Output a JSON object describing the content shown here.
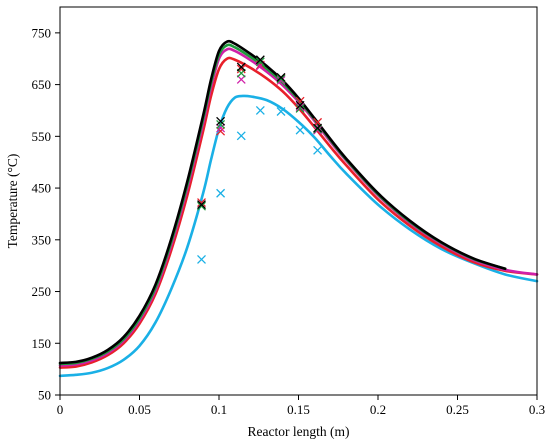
{
  "chart_data": {
    "type": "line",
    "title": "",
    "xlabel": "Reactor length (m)",
    "ylabel": "Temperature (°C)",
    "xlim": [
      0,
      0.3
    ],
    "ylim": [
      50,
      800
    ],
    "xticks": [
      0,
      0.05,
      0.1,
      0.15,
      0.2,
      0.25,
      0.3
    ],
    "xtick_labels": [
      "0",
      "0.05",
      "0.1",
      "0.15",
      "0.2",
      "0.25",
      "0.3"
    ],
    "yticks": [
      50,
      150,
      250,
      350,
      450,
      550,
      650,
      750
    ],
    "ytick_labels": [
      "50",
      "150",
      "250",
      "350",
      "450",
      "550",
      "650",
      "750"
    ],
    "grid": false,
    "legend": "none",
    "series": [
      {
        "kind": "line",
        "color": "#1ab0e6",
        "x": [
          0,
          0.01,
          0.02,
          0.03,
          0.04,
          0.05,
          0.06,
          0.07,
          0.08,
          0.09,
          0.095,
          0.1,
          0.105,
          0.11,
          0.115,
          0.12,
          0.13,
          0.14,
          0.15,
          0.16,
          0.17,
          0.18,
          0.2,
          0.22,
          0.24,
          0.26,
          0.28,
          0.3
        ],
        "y": [
          87,
          89,
          93,
          102,
          118,
          145,
          190,
          255,
          335,
          440,
          505,
          565,
          605,
          625,
          628,
          627,
          620,
          603,
          578,
          548,
          512,
          478,
          418,
          370,
          332,
          305,
          283,
          270
        ]
      },
      {
        "kind": "line",
        "color": "#e8202a",
        "x": [
          0,
          0.01,
          0.02,
          0.03,
          0.04,
          0.05,
          0.06,
          0.07,
          0.08,
          0.09,
          0.095,
          0.1,
          0.105,
          0.11,
          0.12,
          0.13,
          0.14,
          0.15,
          0.16,
          0.17,
          0.18,
          0.2,
          0.22,
          0.24,
          0.26,
          0.28,
          0.3
        ],
        "y": [
          103,
          105,
          113,
          127,
          150,
          188,
          245,
          330,
          435,
          560,
          628,
          680,
          700,
          698,
          682,
          662,
          637,
          605,
          568,
          530,
          494,
          428,
          377,
          337,
          307,
          290,
          283
        ]
      },
      {
        "kind": "line",
        "color": "#d020a8",
        "x": [
          0,
          0.01,
          0.02,
          0.03,
          0.04,
          0.05,
          0.06,
          0.07,
          0.08,
          0.09,
          0.095,
          0.1,
          0.105,
          0.11,
          0.12,
          0.13,
          0.14,
          0.15,
          0.16,
          0.17,
          0.18,
          0.2,
          0.22,
          0.24,
          0.26,
          0.28,
          0.3
        ],
        "y": [
          107,
          109,
          117,
          131,
          155,
          194,
          252,
          340,
          448,
          575,
          645,
          700,
          718,
          715,
          697,
          675,
          649,
          617,
          580,
          540,
          503,
          436,
          383,
          342,
          311,
          292,
          283
        ]
      },
      {
        "kind": "line",
        "color": "#1e9a3c",
        "x": [
          0,
          0.01,
          0.02,
          0.03,
          0.04,
          0.05,
          0.06,
          0.07,
          0.08,
          0.09,
          0.095,
          0.1,
          0.105,
          0.11,
          0.12,
          0.13,
          0.14,
          0.15,
          0.16,
          0.17,
          0.18,
          0.2,
          0.22,
          0.24,
          0.26,
          0.28
        ],
        "y": [
          110,
          112,
          120,
          134,
          158,
          198,
          257,
          346,
          455,
          583,
          653,
          708,
          726,
          722,
          703,
          681,
          654,
          621,
          583,
          543,
          505,
          438,
          385,
          344,
          313,
          294
        ]
      },
      {
        "kind": "line",
        "color": "#000000",
        "x": [
          0,
          0.01,
          0.02,
          0.03,
          0.04,
          0.05,
          0.06,
          0.07,
          0.08,
          0.09,
          0.095,
          0.1,
          0.105,
          0.11,
          0.12,
          0.13,
          0.14,
          0.15,
          0.16,
          0.17,
          0.18,
          0.2,
          0.22,
          0.24,
          0.26,
          0.28
        ],
        "y": [
          112,
          114,
          122,
          137,
          162,
          203,
          263,
          352,
          462,
          590,
          660,
          715,
          733,
          729,
          709,
          686,
          658,
          624,
          585,
          545,
          507,
          440,
          387,
          345,
          314,
          294
        ]
      },
      {
        "kind": "markers",
        "marker": "x",
        "color": "#1ab0e6",
        "x": [
          0.089,
          0.101,
          0.114,
          0.126,
          0.139,
          0.151,
          0.162
        ],
        "y": [
          312,
          440,
          551,
          600,
          598,
          562,
          523
        ]
      },
      {
        "kind": "markers",
        "marker": "x",
        "color": "#e8202a",
        "x": [
          0.089,
          0.101,
          0.114,
          0.126,
          0.139,
          0.151,
          0.162
        ],
        "y": [
          422,
          560,
          680,
          688,
          662,
          618,
          577
        ]
      },
      {
        "kind": "markers",
        "marker": "x",
        "color": "#d020a8",
        "x": [
          0.101,
          0.114,
          0.126,
          0.139,
          0.151,
          0.162
        ],
        "y": [
          566,
          660,
          686,
          658,
          606,
          562
        ]
      },
      {
        "kind": "markers",
        "marker": "x",
        "color": "#1e9a3c",
        "x": [
          0.089,
          0.101,
          0.114,
          0.126,
          0.139,
          0.151,
          0.162
        ],
        "y": [
          415,
          573,
          672,
          694,
          661,
          604,
          564
        ]
      },
      {
        "kind": "markers",
        "marker": "x",
        "color": "#000000",
        "x": [
          0.089,
          0.101,
          0.114,
          0.126,
          0.139,
          0.151,
          0.162
        ],
        "y": [
          418,
          579,
          684,
          698,
          664,
          610,
          566
        ]
      }
    ]
  }
}
